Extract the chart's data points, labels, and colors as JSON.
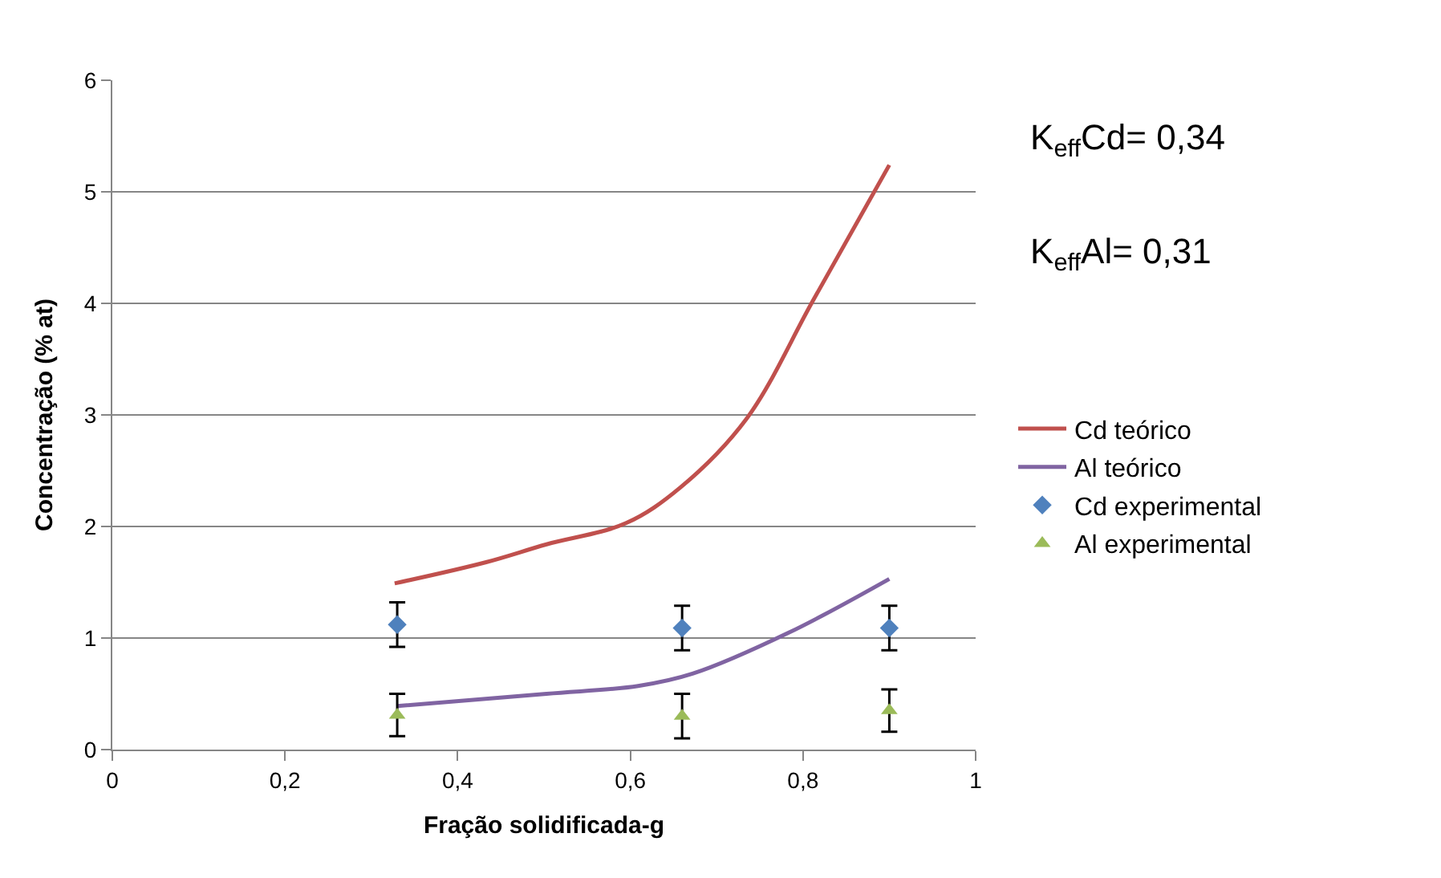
{
  "chart_data": {
    "type": "line",
    "xlabel": "Fração solidificada-g",
    "ylabel": "Concentração (% at)",
    "xlim": [
      0,
      1
    ],
    "xticks": [
      0,
      {
        "value": 0.2,
        "label": "0,2"
      },
      {
        "value": 0.4,
        "label": "0,4"
      },
      {
        "value": 0.6,
        "label": "0,6"
      },
      {
        "value": 0.8,
        "label": "0,8"
      },
      1
    ],
    "ylim": [
      0,
      6
    ],
    "yticks": [
      0,
      1,
      2,
      3,
      4,
      5,
      6
    ],
    "grid": "y",
    "legend": "right",
    "annotations": [
      "K$_{eff}$Cd= 0,34",
      "K$_{eff}$Al= 0,31"
    ],
    "series": [
      {
        "name": "Cd teórico",
        "color": "#c0504d",
        "marker": "none",
        "x": [
          0.327,
          0.433,
          0.503,
          0.595,
          0.658,
          0.735,
          0.812,
          0.9
        ],
        "values": [
          1.49,
          1.68,
          1.84,
          2.03,
          2.35,
          2.97,
          4.03,
          5.24
        ]
      },
      {
        "name": "Al teórico",
        "color": "#8064a2",
        "marker": "none",
        "x": [
          0.33,
          0.503,
          0.609,
          0.672,
          0.784,
          0.9
        ],
        "values": [
          0.39,
          0.5,
          0.57,
          0.68,
          1.05,
          1.53
        ]
      },
      {
        "name": "Cd experimental",
        "type": "scatter",
        "color": "#4f81bd",
        "marker": "diamond",
        "x": [
          0.33,
          0.66,
          0.9
        ],
        "values": [
          1.12,
          1.09,
          1.09
        ],
        "errors": [
          0.2,
          0.2,
          0.2
        ]
      },
      {
        "name": "Al experimental",
        "type": "scatter",
        "color": "#9bbb59",
        "marker": "triangle",
        "x": [
          0.33,
          0.66,
          0.9
        ],
        "values": [
          0.31,
          0.3,
          0.35
        ],
        "errors": [
          0.19,
          0.2,
          0.19
        ]
      }
    ]
  }
}
